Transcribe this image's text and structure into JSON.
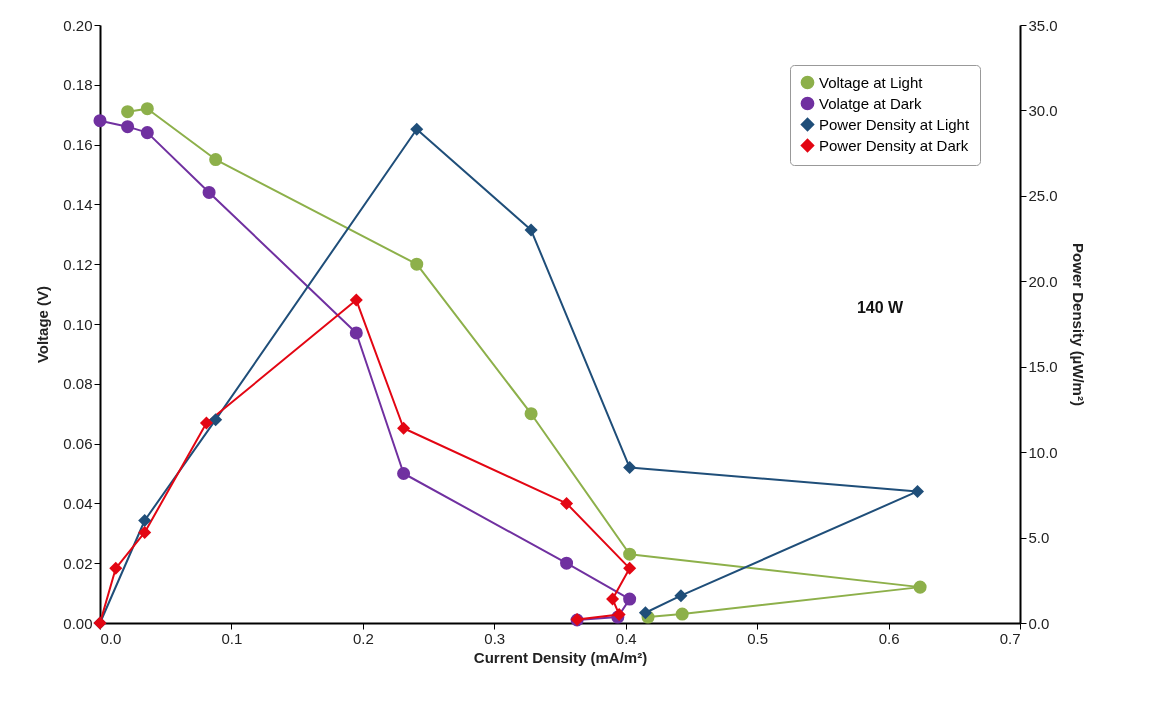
{
  "chart_data": {
    "type": "line",
    "xlabel": "Current Density (mA/m²)",
    "ylabel": "Voltage (V)",
    "y2label": "Power Density (µW/m²)",
    "xlim": [
      0,
      0.7
    ],
    "xticks": [
      {
        "value": 0,
        "label": "0.0"
      },
      0.1,
      0.2,
      0.3,
      0.4,
      0.5,
      0.6,
      0.7
    ],
    "ylim": [
      0,
      0.2
    ],
    "yticks": [
      {
        "value": 0,
        "label": "0.00"
      },
      {
        "value": 0.02,
        "label": "0.02"
      },
      {
        "value": 0.04,
        "label": "0.04"
      },
      {
        "value": 0.06,
        "label": "0.06"
      },
      {
        "value": 0.08,
        "label": "0.08"
      },
      {
        "value": 0.1,
        "label": "0.10"
      },
      {
        "value": 0.12,
        "label": "0.12"
      },
      {
        "value": 0.14,
        "label": "0.14"
      },
      {
        "value": 0.16,
        "label": "0.16"
      },
      {
        "value": 0.18,
        "label": "0.18"
      },
      {
        "value": 0.2,
        "label": "0.20"
      }
    ],
    "y2lim": [
      0,
      35
    ],
    "y2ticks": [
      {
        "value": 0,
        "label": "0.0"
      },
      {
        "value": 5,
        "label": "5.0"
      },
      {
        "value": 10,
        "label": "10.0"
      },
      {
        "value": 15,
        "label": "15.0"
      },
      {
        "value": 20,
        "label": "20.0"
      },
      {
        "value": 25,
        "label": "25.0"
      },
      {
        "value": 30,
        "label": "30.0"
      },
      {
        "value": 35,
        "label": "35.0"
      }
    ],
    "grid": false,
    "legend": "top right",
    "annotations": [
      "140 W"
    ],
    "series": [
      {
        "name": "Voltage at Light",
        "color": "#8db04a",
        "marker": "circle",
        "x": [
          0.021,
          0.036,
          0.088,
          0.241,
          0.328,
          0.403,
          0.624,
          0.443,
          0.417
        ],
        "values": [
          0.171,
          0.172,
          0.155,
          0.12,
          0.07,
          0.023,
          0.012,
          0.003,
          0.002
        ]
      },
      {
        "name": "Volatge at Dark",
        "color": "#7030a0",
        "marker": "circle",
        "x": [
          0,
          0.021,
          0.036,
          0.083,
          0.195,
          0.231,
          0.355,
          0.403,
          0.394,
          0.363
        ],
        "values": [
          0.168,
          0.166,
          0.164,
          0.144,
          0.097,
          0.05,
          0.02,
          0.008,
          0.002,
          0.001
        ]
      },
      {
        "name": "Power Density at Light",
        "color": "#1f4e79",
        "marker": "diamond",
        "axis": "y2",
        "x": [
          0,
          0.034,
          0.088,
          0.241,
          0.328,
          0.403,
          0.622,
          0.442,
          0.415
        ],
        "values": [
          0,
          6.0,
          11.9,
          28.9,
          23.0,
          9.1,
          7.7,
          1.6,
          0.6
        ]
      },
      {
        "name": "Power Density at Dark",
        "color": "#e30613",
        "marker": "diamond",
        "axis": "y2",
        "x": [
          0,
          0.012,
          0.034,
          0.081,
          0.195,
          0.231,
          0.355,
          0.403,
          0.39,
          0.395,
          0.363
        ],
        "values": [
          0,
          3.2,
          5.3,
          11.7,
          18.9,
          11.4,
          7.0,
          3.2,
          1.4,
          0.5,
          0.2
        ]
      }
    ]
  }
}
